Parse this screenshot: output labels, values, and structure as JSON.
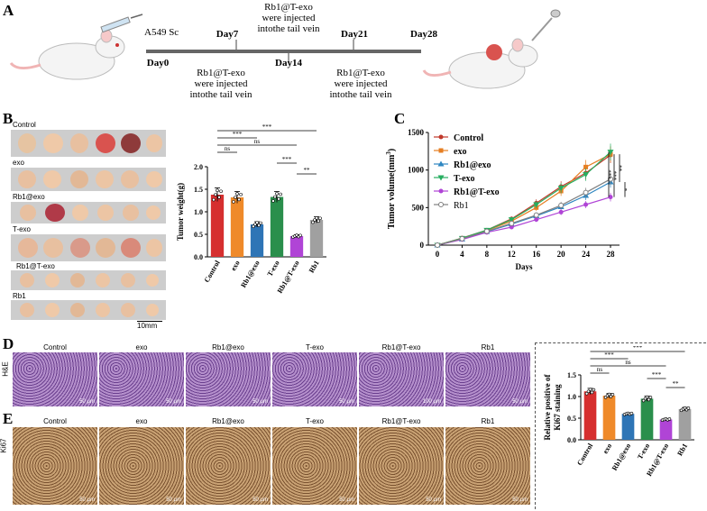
{
  "panels": {
    "A": "A",
    "B": "B",
    "C": "C",
    "D": "D",
    "E": "E"
  },
  "timeline": {
    "start_label": "A549 Sc",
    "days": [
      "Day0",
      "Day7",
      "Day14",
      "Day21",
      "Day28"
    ],
    "inj_day7": [
      "Rb1@T-exo",
      "were injected",
      "intothe tail vein"
    ],
    "inj_day14": [
      "Rb1@T-exo",
      "were injected",
      "intothe tail vein"
    ],
    "inj_day21": [
      "Rb1@T-exo",
      "were injected",
      "intothe tail vein"
    ]
  },
  "tumor_groups": [
    "Control",
    "exo",
    "Rb1@exo",
    "T-exo",
    "Rb1@T-exo",
    "Rb1"
  ],
  "tumor_scale": "10mm",
  "histology": {
    "groups": [
      "Control",
      "exo",
      "Rb1@exo",
      "T-exo",
      "Rb1@T-exo",
      "Rb1"
    ],
    "row_he": "H&E",
    "row_ki67": "Ki67",
    "scale_bars": [
      "50 μm",
      "50 μm",
      "50 μm",
      "50 μm",
      "100 μm",
      "50 μm"
    ]
  },
  "chart_data": [
    {
      "type": "bar",
      "categories": [
        "Control",
        "exo",
        "Rb1@exo",
        "T-exo",
        "Rb1@T-exo",
        "Rb1"
      ],
      "values": [
        1.38,
        1.32,
        0.72,
        1.33,
        0.46,
        0.82
      ],
      "errors": [
        0.15,
        0.13,
        0.06,
        0.12,
        0.03,
        0.07
      ],
      "ylabel": "Tumor weight(g)",
      "ylim": [
        0,
        2.0
      ],
      "yticks": [
        "0.0",
        "0.5",
        "1.0",
        "1.5",
        "2.0"
      ],
      "colors": [
        "#d62f2f",
        "#ef8a2a",
        "#2e75b6",
        "#2a8f4c",
        "#b044d6",
        "#a0a0a0"
      ],
      "significance": [
        "***",
        "***",
        "ns",
        "ns",
        "***",
        "**"
      ]
    },
    {
      "type": "line",
      "x": [
        0,
        4,
        8,
        12,
        16,
        20,
        24,
        28
      ],
      "xticks": [
        "0",
        "4",
        "8",
        "12",
        "16",
        "20",
        "24",
        "28"
      ],
      "xlabel": "Days",
      "ylabel": "Tumor volume(mm",
      "ylabel_sup": "3",
      "ylabel_close": ")",
      "ylim": [
        0,
        1500
      ],
      "yticks": [
        "0",
        "500",
        "1000",
        "1500"
      ],
      "series": [
        {
          "name": "Control",
          "color": "#c0392b",
          "marker": "circle",
          "values": [
            0,
            95,
            200,
            350,
            560,
            780,
            960,
            1200
          ]
        },
        {
          "name": "exo",
          "color": "#e67e22",
          "marker": "square",
          "values": [
            0,
            90,
            195,
            320,
            500,
            720,
            1040,
            1210
          ]
        },
        {
          "name": "Rb1@exo",
          "color": "#2e86c1",
          "marker": "triangle",
          "values": [
            0,
            80,
            180,
            280,
            390,
            510,
            660,
            840
          ]
        },
        {
          "name": "T-exo",
          "color": "#27ae60",
          "marker": "triangle-down",
          "values": [
            0,
            92,
            200,
            340,
            540,
            760,
            940,
            1240
          ]
        },
        {
          "name": "Rb1@T-exo",
          "color": "#b044d6",
          "marker": "circle",
          "values": [
            0,
            75,
            170,
            240,
            340,
            440,
            540,
            640
          ]
        },
        {
          "name": "Rb1",
          "color": "#808080",
          "marker": "circle-open",
          "values": [
            0,
            85,
            185,
            290,
            400,
            530,
            700,
            880
          ]
        }
      ],
      "significance": [
        "***",
        "***",
        "**",
        "*"
      ]
    },
    {
      "type": "bar",
      "categories": [
        "Control",
        "exo",
        "Rb1@exo",
        "T-exo",
        "Rb1@T-exo",
        "Rb1"
      ],
      "values": [
        1.12,
        1.02,
        0.6,
        0.95,
        0.47,
        0.71
      ],
      "errors": [
        0.07,
        0.05,
        0.02,
        0.06,
        0.02,
        0.04
      ],
      "ylabel": "Relative positive of",
      "ylabel2": "Ki67 staining",
      "ylim": [
        0,
        1.5
      ],
      "yticks": [
        "0.0",
        "0.5",
        "1.0",
        "1.5"
      ],
      "colors": [
        "#d62f2f",
        "#ef8a2a",
        "#2e75b6",
        "#2a8f4c",
        "#b044d6",
        "#a0a0a0"
      ],
      "significance": [
        "***",
        "***",
        "ns",
        "ns",
        "***",
        "**"
      ]
    }
  ]
}
